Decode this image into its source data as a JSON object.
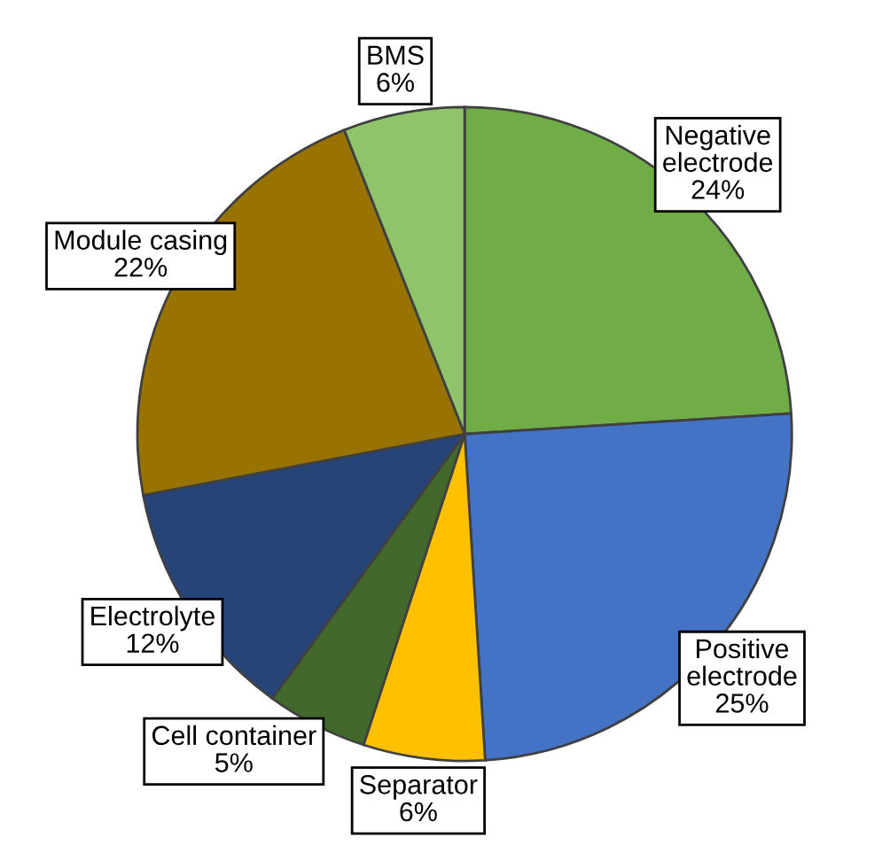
{
  "chart_data": {
    "type": "pie",
    "categories": [
      "Negative\nelectrode",
      "Positive\nelectrode",
      "Separator",
      "Cell container",
      "Electrolyte",
      "Module casing",
      "BMS"
    ],
    "values": [
      24,
      25,
      6,
      5,
      12,
      22,
      6
    ],
    "value_labels": [
      "24%",
      "25%",
      "6%",
      "5%",
      "12%",
      "22%",
      "6%"
    ],
    "colors": [
      "#70ad47",
      "#4472c4",
      "#ffc000",
      "#43682b",
      "#264478",
      "#997300",
      "#8fc46a"
    ]
  }
}
